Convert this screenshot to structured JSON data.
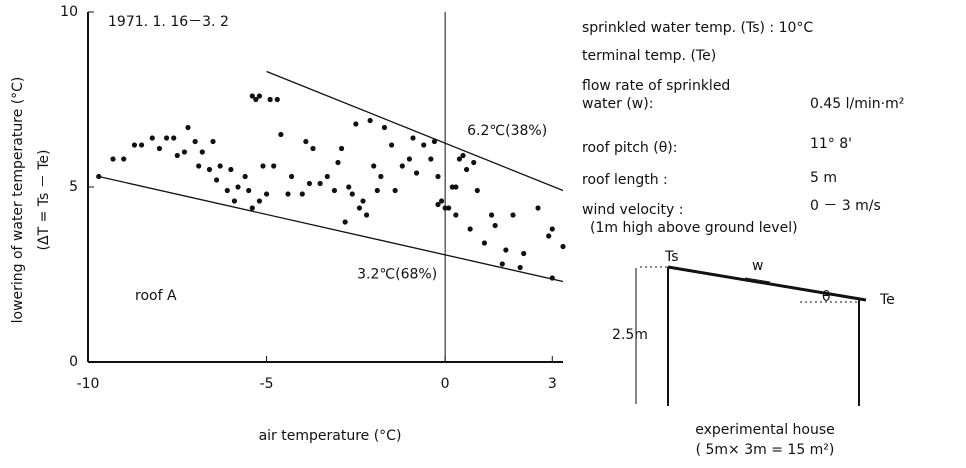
{
  "chart_data": {
    "type": "scatter",
    "title": "1971. 1. 16－3. 2",
    "xlabel": "air temperature (°C)",
    "ylabel": "lowering of water temperature (°C)",
    "ylabel2": "(ΔT = Ts － Te)",
    "annotation": "roof A",
    "xlim": [
      -10,
      3.3
    ],
    "ylim": [
      0,
      10
    ],
    "xticks": [
      -10,
      -5,
      0,
      3
    ],
    "yticks": [
      0,
      5,
      10
    ],
    "color": "#111111",
    "x": [
      -9.7,
      -9.3,
      -9.0,
      -8.7,
      -8.5,
      -8.2,
      -8.0,
      -7.8,
      -7.6,
      -7.5,
      -7.3,
      -7.2,
      -7.0,
      -6.9,
      -6.8,
      -6.6,
      -6.5,
      -6.4,
      -6.3,
      -6.1,
      -6.0,
      -5.9,
      -5.8,
      -5.6,
      -5.5,
      -5.4,
      -5.3,
      -5.2,
      -5.1,
      -5.0,
      -4.9,
      -4.7,
      -5.4,
      -5.2,
      -4.8,
      -4.6,
      -4.3,
      -4.0,
      -3.9,
      -3.8,
      -3.5,
      -3.3,
      -3.1,
      -3.0,
      -2.9,
      -2.7,
      -2.6,
      -2.5,
      -2.4,
      -2.3,
      -2.2,
      -2.1,
      -2.0,
      -1.9,
      -1.8,
      -1.7,
      -1.5,
      -1.4,
      -1.2,
      -1.0,
      -0.9,
      -0.8,
      -0.6,
      -0.4,
      -0.3,
      -0.2,
      -0.1,
      0.0,
      0.1,
      0.2,
      0.3,
      0.4,
      0.5,
      0.6,
      0.7,
      0.8,
      0.9,
      1.1,
      1.3,
      1.4,
      1.6,
      1.7,
      1.9,
      2.1,
      2.2,
      2.6,
      2.9,
      3.0,
      3.0,
      3.3,
      -4.4,
      -3.7,
      -2.8,
      0.3,
      -0.2
    ],
    "values": [
      5.3,
      5.8,
      5.8,
      6.2,
      6.2,
      6.4,
      6.1,
      6.4,
      6.4,
      5.9,
      6.0,
      6.7,
      6.3,
      5.6,
      6.0,
      5.5,
      6.3,
      5.2,
      5.6,
      4.9,
      5.5,
      4.6,
      5.0,
      5.3,
      4.9,
      7.6,
      7.5,
      7.6,
      5.6,
      4.8,
      7.5,
      7.5,
      4.4,
      4.6,
      5.6,
      6.5,
      5.3,
      4.8,
      6.3,
      5.1,
      5.1,
      5.3,
      4.9,
      5.7,
      6.1,
      5.0,
      4.8,
      6.8,
      4.4,
      4.6,
      4.2,
      6.9,
      5.6,
      4.9,
      5.3,
      6.7,
      6.2,
      4.9,
      5.6,
      5.8,
      6.4,
      5.4,
      6.2,
      5.8,
      6.3,
      5.3,
      4.6,
      4.4,
      4.4,
      5.0,
      4.2,
      5.8,
      5.9,
      5.5,
      3.8,
      5.7,
      4.9,
      3.4,
      4.2,
      3.9,
      2.8,
      3.2,
      4.2,
      2.7,
      3.1,
      4.4,
      3.6,
      3.8,
      2.4,
      3.3,
      4.8,
      6.1,
      4.0,
      5.0,
      4.5
    ],
    "lines": [
      {
        "x": [
          -5,
          3.3
        ],
        "y": [
          8.3,
          4.9
        ],
        "label": "6.2℃(38%)"
      },
      {
        "x": [
          -9.7,
          3.3
        ],
        "y": [
          5.3,
          2.3
        ],
        "label": "3.2℃(68%)"
      }
    ],
    "vline": 0
  },
  "conditions": [
    {
      "label": "sprinkled water temp. (Ts) : 10°C",
      "value": ""
    },
    {
      "label": "terminal temp. (Te)"
    },
    {
      "label": "flow rate of sprinkled"
    },
    {
      "label": "water (w):",
      "value": "0.45 l/min·m²"
    },
    {
      "label": "roof pitch (θ):",
      "value": "11° 8'"
    },
    {
      "label": "roof length :",
      "value": "5 m"
    },
    {
      "label": "wind velocity :",
      "value": "0 － 3 m/s"
    },
    {
      "label": "(1m high above ground level)"
    }
  ],
  "diagram": {
    "ts": "Ts",
    "w": "w",
    "theta": "θ",
    "te": "Te",
    "height": "2.5m",
    "caption": "experimental house",
    "caption2": "( 5m× 3m = 15 m²)"
  }
}
